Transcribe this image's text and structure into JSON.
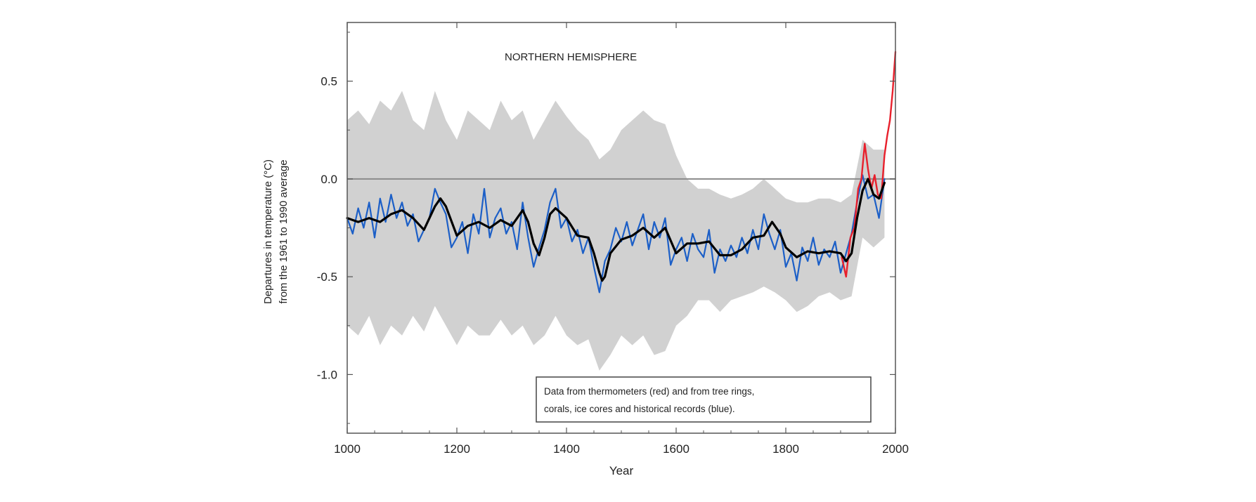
{
  "chart_data": {
    "type": "line",
    "title": "NORTHERN HEMISPHERE",
    "xlabel": "Year",
    "ylabel_line1": "Departures in temperature (°C)",
    "ylabel_line2": "from the 1961 to 1990 average",
    "xlim": [
      1000,
      2000
    ],
    "ylim": [
      -1.3,
      0.8
    ],
    "x_ticks": [
      1000,
      1200,
      1400,
      1600,
      1800,
      2000
    ],
    "x_tick_labels": [
      "1000",
      "1200",
      "1400",
      "1600",
      "1800",
      "2000"
    ],
    "y_ticks": [
      0.5,
      0.0,
      -0.5,
      -1.0
    ],
    "y_tick_labels": [
      "0.5",
      "0.0",
      "-0.5",
      "-1.0"
    ],
    "zero_line": 0.0,
    "legend_line1": "Data from thermometers (red) and from tree rings,",
    "legend_line2": "corals, ice cores and historical records (blue).",
    "legend_position": "bottom-right",
    "colors": {
      "uncertainty": "#c9c9c9",
      "proxy": "#1c5fc7",
      "thermometer": "#e8202c",
      "smoothed": "#000000",
      "zero_line": "#8a8a8a",
      "frame": "#555555"
    },
    "smoothed": {
      "x": [
        1000,
        1020,
        1040,
        1060,
        1080,
        1100,
        1120,
        1140,
        1160,
        1170,
        1180,
        1200,
        1220,
        1240,
        1260,
        1280,
        1300,
        1320,
        1330,
        1340,
        1350,
        1360,
        1370,
        1380,
        1400,
        1420,
        1440,
        1450,
        1460,
        1465,
        1470,
        1480,
        1500,
        1520,
        1540,
        1560,
        1580,
        1600,
        1620,
        1640,
        1660,
        1680,
        1700,
        1720,
        1740,
        1760,
        1775,
        1790,
        1800,
        1820,
        1840,
        1860,
        1880,
        1900,
        1910,
        1920,
        1930,
        1940,
        1950,
        1960,
        1970,
        1980
      ],
      "y": [
        -0.2,
        -0.22,
        -0.2,
        -0.22,
        -0.18,
        -0.16,
        -0.2,
        -0.26,
        -0.14,
        -0.1,
        -0.14,
        -0.29,
        -0.24,
        -0.22,
        -0.25,
        -0.21,
        -0.24,
        -0.16,
        -0.22,
        -0.33,
        -0.39,
        -0.3,
        -0.18,
        -0.15,
        -0.2,
        -0.29,
        -0.3,
        -0.38,
        -0.48,
        -0.52,
        -0.5,
        -0.38,
        -0.31,
        -0.29,
        -0.25,
        -0.3,
        -0.25,
        -0.38,
        -0.33,
        -0.33,
        -0.32,
        -0.39,
        -0.39,
        -0.36,
        -0.3,
        -0.29,
        -0.22,
        -0.28,
        -0.35,
        -0.4,
        -0.37,
        -0.38,
        -0.37,
        -0.38,
        -0.42,
        -0.38,
        -0.2,
        -0.06,
        0.0,
        -0.08,
        -0.1,
        -0.02
      ]
    },
    "proxy": {
      "x": [
        1000,
        1010,
        1020,
        1030,
        1040,
        1050,
        1060,
        1070,
        1080,
        1090,
        1100,
        1110,
        1120,
        1130,
        1140,
        1150,
        1160,
        1170,
        1180,
        1190,
        1200,
        1210,
        1220,
        1230,
        1240,
        1250,
        1260,
        1270,
        1280,
        1290,
        1300,
        1310,
        1320,
        1330,
        1340,
        1350,
        1360,
        1370,
        1380,
        1390,
        1400,
        1410,
        1420,
        1430,
        1440,
        1450,
        1460,
        1470,
        1480,
        1490,
        1500,
        1510,
        1520,
        1530,
        1540,
        1550,
        1560,
        1570,
        1580,
        1590,
        1600,
        1610,
        1620,
        1630,
        1640,
        1650,
        1660,
        1670,
        1680,
        1690,
        1700,
        1710,
        1720,
        1730,
        1740,
        1750,
        1760,
        1770,
        1780,
        1790,
        1800,
        1810,
        1820,
        1830,
        1840,
        1850,
        1860,
        1870,
        1880,
        1890,
        1900,
        1910,
        1920,
        1930,
        1940,
        1950,
        1960,
        1970,
        1980
      ],
      "y": [
        -0.2,
        -0.28,
        -0.15,
        -0.25,
        -0.12,
        -0.3,
        -0.1,
        -0.22,
        -0.08,
        -0.2,
        -0.12,
        -0.24,
        -0.18,
        -0.32,
        -0.26,
        -0.2,
        -0.05,
        -0.12,
        -0.18,
        -0.35,
        -0.3,
        -0.22,
        -0.38,
        -0.18,
        -0.28,
        -0.05,
        -0.3,
        -0.2,
        -0.15,
        -0.28,
        -0.22,
        -0.36,
        -0.12,
        -0.3,
        -0.45,
        -0.35,
        -0.26,
        -0.12,
        -0.05,
        -0.25,
        -0.2,
        -0.32,
        -0.26,
        -0.38,
        -0.3,
        -0.45,
        -0.58,
        -0.42,
        -0.36,
        -0.25,
        -0.32,
        -0.22,
        -0.34,
        -0.26,
        -0.18,
        -0.36,
        -0.22,
        -0.3,
        -0.2,
        -0.44,
        -0.36,
        -0.3,
        -0.42,
        -0.28,
        -0.36,
        -0.4,
        -0.26,
        -0.48,
        -0.36,
        -0.42,
        -0.34,
        -0.4,
        -0.3,
        -0.38,
        -0.26,
        -0.36,
        -0.18,
        -0.28,
        -0.36,
        -0.26,
        -0.45,
        -0.38,
        -0.52,
        -0.35,
        -0.42,
        -0.3,
        -0.44,
        -0.36,
        -0.4,
        -0.32,
        -0.48,
        -0.38,
        -0.28,
        -0.12,
        0.02,
        -0.1,
        -0.08,
        -0.2,
        0.0
      ]
    },
    "uncertainty": {
      "x": [
        1000,
        1020,
        1040,
        1060,
        1080,
        1100,
        1120,
        1140,
        1160,
        1180,
        1200,
        1220,
        1240,
        1260,
        1280,
        1300,
        1320,
        1340,
        1360,
        1380,
        1400,
        1420,
        1440,
        1460,
        1480,
        1500,
        1520,
        1540,
        1560,
        1580,
        1600,
        1620,
        1640,
        1660,
        1680,
        1700,
        1720,
        1740,
        1760,
        1780,
        1800,
        1820,
        1840,
        1860,
        1880,
        1900,
        1920,
        1940,
        1960,
        1980
      ],
      "upper": [
        0.3,
        0.35,
        0.28,
        0.4,
        0.35,
        0.45,
        0.3,
        0.25,
        0.45,
        0.3,
        0.2,
        0.35,
        0.3,
        0.25,
        0.4,
        0.3,
        0.35,
        0.2,
        0.3,
        0.4,
        0.32,
        0.25,
        0.2,
        0.1,
        0.15,
        0.25,
        0.3,
        0.35,
        0.3,
        0.28,
        0.12,
        0.0,
        -0.05,
        -0.05,
        -0.08,
        -0.1,
        -0.08,
        -0.05,
        0.0,
        -0.05,
        -0.1,
        -0.12,
        -0.12,
        -0.1,
        -0.1,
        -0.12,
        -0.08,
        0.2,
        0.15,
        0.15
      ],
      "lower": [
        -0.75,
        -0.8,
        -0.7,
        -0.85,
        -0.75,
        -0.8,
        -0.7,
        -0.78,
        -0.65,
        -0.75,
        -0.85,
        -0.75,
        -0.8,
        -0.8,
        -0.72,
        -0.8,
        -0.75,
        -0.85,
        -0.8,
        -0.7,
        -0.8,
        -0.85,
        -0.82,
        -0.98,
        -0.9,
        -0.8,
        -0.85,
        -0.8,
        -0.9,
        -0.88,
        -0.75,
        -0.7,
        -0.62,
        -0.62,
        -0.68,
        -0.62,
        -0.6,
        -0.58,
        -0.55,
        -0.58,
        -0.62,
        -0.68,
        -0.65,
        -0.6,
        -0.58,
        -0.62,
        -0.6,
        -0.3,
        -0.35,
        -0.3
      ]
    },
    "thermometer": {
      "x": [
        1902,
        1910,
        1918,
        1925,
        1932,
        1938,
        1944,
        1950,
        1956,
        1962,
        1968,
        1974,
        1980,
        1985,
        1990,
        1995,
        2000
      ],
      "y": [
        -0.4,
        -0.5,
        -0.3,
        -0.25,
        -0.05,
        0.0,
        0.18,
        0.05,
        -0.05,
        0.02,
        -0.08,
        -0.1,
        0.12,
        0.22,
        0.3,
        0.45,
        0.65
      ]
    }
  }
}
